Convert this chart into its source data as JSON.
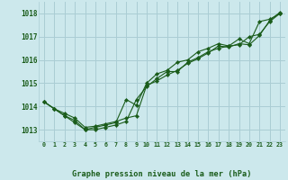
{
  "title": "Graphe pression niveau de la mer (hPa)",
  "background_color": "#cce8ec",
  "grid_color": "#aacdd4",
  "line_color": "#1a5c1a",
  "marker_color": "#1a5c1a",
  "xlim": [
    -0.5,
    23.5
  ],
  "ylim": [
    1012.5,
    1018.5
  ],
  "yticks": [
    1013,
    1014,
    1015,
    1016,
    1017,
    1018
  ],
  "xticks": [
    0,
    1,
    2,
    3,
    4,
    5,
    6,
    7,
    8,
    9,
    10,
    11,
    12,
    13,
    14,
    15,
    16,
    17,
    18,
    19,
    20,
    21,
    22,
    23
  ],
  "series1": {
    "x": [
      0,
      1,
      2,
      3,
      4,
      5,
      6,
      7,
      8,
      9,
      10,
      11,
      12,
      13,
      14,
      15,
      16,
      17,
      18,
      19,
      20,
      21,
      22,
      23
    ],
    "y": [
      1014.2,
      1013.9,
      1013.6,
      1013.3,
      1013.0,
      1013.0,
      1013.1,
      1013.2,
      1013.35,
      1014.3,
      1014.85,
      1015.2,
      1015.5,
      1015.5,
      1015.9,
      1016.1,
      1016.35,
      1016.5,
      1016.6,
      1016.65,
      1017.0,
      1017.1,
      1017.65,
      1018.0
    ]
  },
  "series2": {
    "x": [
      0,
      1,
      2,
      3,
      4,
      5,
      6,
      7,
      8,
      9,
      10,
      11,
      12,
      13,
      14,
      15,
      16,
      17,
      18,
      19,
      20,
      21,
      22,
      23
    ],
    "y": [
      1014.2,
      1013.9,
      1013.6,
      1013.4,
      1013.0,
      1013.1,
      1013.2,
      1013.3,
      1014.3,
      1014.05,
      1015.0,
      1015.4,
      1015.55,
      1015.9,
      1016.0,
      1016.35,
      1016.5,
      1016.7,
      1016.6,
      1016.9,
      1016.7,
      1017.65,
      1017.75,
      1018.0
    ]
  },
  "series3": {
    "x": [
      0,
      1,
      2,
      3,
      4,
      5,
      6,
      7,
      8,
      9,
      10,
      11,
      12,
      13,
      14,
      15,
      16,
      17,
      18,
      19,
      20,
      21,
      22,
      23
    ],
    "y": [
      1014.2,
      1013.9,
      1013.7,
      1013.5,
      1013.1,
      1013.15,
      1013.25,
      1013.35,
      1013.5,
      1013.6,
      1014.9,
      1015.1,
      1015.35,
      1015.55,
      1015.85,
      1016.05,
      1016.3,
      1016.6,
      1016.55,
      1016.7,
      1016.65,
      1017.05,
      1017.7,
      1018.05
    ]
  }
}
